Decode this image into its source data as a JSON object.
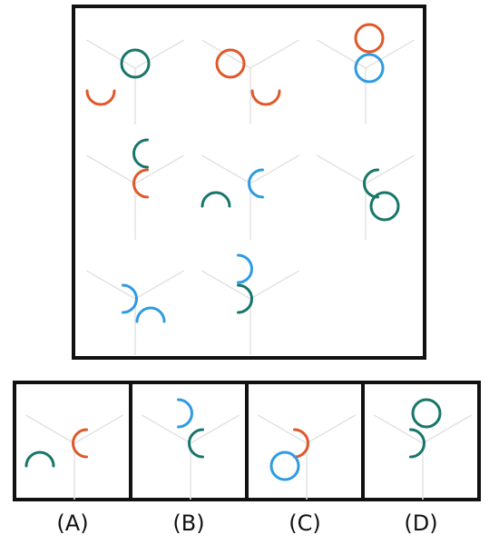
{
  "colors": {
    "frame": "#111111",
    "guide": "#e2e2e2",
    "teal": "#17766a",
    "orange": "#e0582a",
    "blue": "#2f9be3"
  },
  "puzzle": {
    "cells": [
      {
        "id": "r1c1",
        "shapes": [
          {
            "kind": "circle",
            "color": "teal",
            "position": "upper-right"
          },
          {
            "kind": "arc",
            "color": "orange",
            "position": "lower-left",
            "opening": "up"
          }
        ]
      },
      {
        "id": "r1c2",
        "shapes": [
          {
            "kind": "circle",
            "color": "orange",
            "position": "upper-left"
          },
          {
            "kind": "arc",
            "color": "orange",
            "position": "lower-right",
            "opening": "up"
          }
        ]
      },
      {
        "id": "r1c3",
        "shapes": [
          {
            "kind": "circle",
            "color": "orange",
            "position": "top"
          },
          {
            "kind": "circle",
            "color": "blue",
            "position": "center"
          }
        ]
      },
      {
        "id": "r2c1",
        "shapes": [
          {
            "kind": "arc",
            "color": "teal",
            "position": "top",
            "opening": "right"
          },
          {
            "kind": "arc",
            "color": "orange",
            "position": "center",
            "opening": "right"
          }
        ]
      },
      {
        "id": "r2c2",
        "shapes": [
          {
            "kind": "arc",
            "color": "blue",
            "position": "center",
            "opening": "right"
          },
          {
            "kind": "arc",
            "color": "teal",
            "position": "lower-left",
            "opening": "down"
          }
        ]
      },
      {
        "id": "r2c3",
        "shapes": [
          {
            "kind": "arc",
            "color": "teal",
            "position": "center",
            "opening": "right"
          },
          {
            "kind": "circle",
            "color": "teal",
            "position": "lower-right"
          }
        ]
      },
      {
        "id": "r3c1",
        "shapes": [
          {
            "kind": "arc",
            "color": "blue",
            "position": "center",
            "opening": "left"
          },
          {
            "kind": "arc",
            "color": "blue",
            "position": "lower-right",
            "opening": "down"
          }
        ]
      },
      {
        "id": "r3c2",
        "shapes": [
          {
            "kind": "arc",
            "color": "blue",
            "position": "top",
            "opening": "left"
          },
          {
            "kind": "arc",
            "color": "teal",
            "position": "center",
            "opening": "left"
          }
        ]
      },
      {
        "id": "r3c3",
        "shapes": []
      }
    ]
  },
  "options": [
    {
      "label": "(A)",
      "shapes": [
        {
          "kind": "arc",
          "color": "orange",
          "position": "center",
          "opening": "right"
        },
        {
          "kind": "arc",
          "color": "teal",
          "position": "lower-left",
          "opening": "down"
        }
      ]
    },
    {
      "label": "(B)",
      "shapes": [
        {
          "kind": "arc",
          "color": "blue",
          "position": "top",
          "opening": "left"
        },
        {
          "kind": "arc",
          "color": "teal",
          "position": "center",
          "opening": "right"
        }
      ]
    },
    {
      "label": "(C)",
      "shapes": [
        {
          "kind": "arc",
          "color": "orange",
          "position": "center",
          "opening": "left"
        },
        {
          "kind": "circle",
          "color": "blue",
          "position": "lower-left"
        }
      ]
    },
    {
      "label": "(D)",
      "shapes": [
        {
          "kind": "circle",
          "color": "teal",
          "position": "top"
        },
        {
          "kind": "arc",
          "color": "teal",
          "position": "center",
          "opening": "left"
        }
      ]
    }
  ]
}
